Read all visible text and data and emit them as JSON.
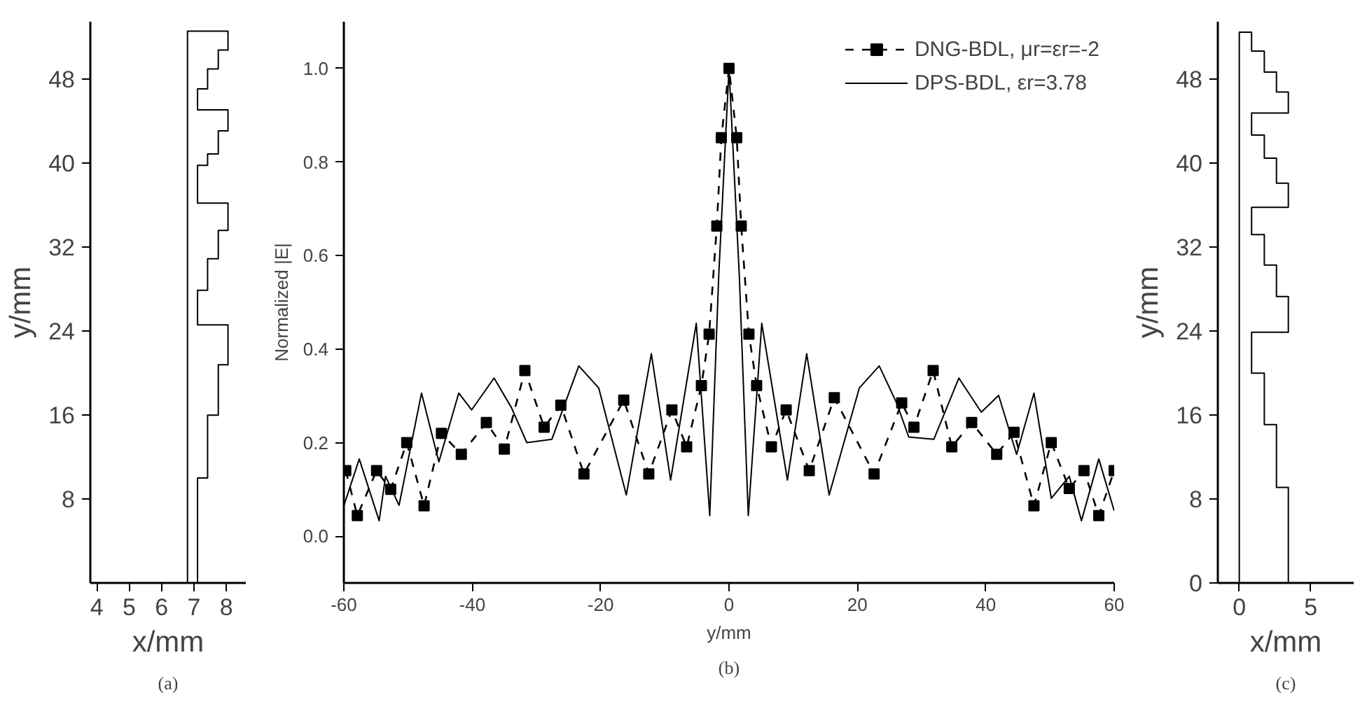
{
  "chart_data": [
    {
      "type": "line",
      "xlabel": "x/mm",
      "ylabel": "y/mm",
      "xlim": [
        3.8,
        8.6
      ],
      "ylim": [
        0,
        53.5
      ],
      "xticks": [
        4,
        5,
        6,
        7,
        8
      ],
      "yticks": [
        8,
        16,
        24,
        32,
        40,
        48
      ],
      "annotations": [
        "(a)"
      ],
      "series": [
        {
          "color": "#000000",
          "x": [
            6.8,
            6.8,
            8.05,
            8.05,
            7.75,
            7.75,
            7.42,
            7.42,
            7.11,
            7.11,
            8.05,
            8.05,
            7.75,
            7.75,
            7.42,
            7.42,
            7.11,
            7.11,
            8.05,
            8.05,
            7.75,
            7.75,
            7.42,
            7.42,
            7.11,
            7.11,
            8.05,
            8.05,
            7.75,
            7.75,
            7.42,
            7.42,
            7.11,
            7.11
          ],
          "values": [
            0,
            52.6,
            52.6,
            50.8,
            50.8,
            49.0,
            49.0,
            47.1,
            47.1,
            45.1,
            45.1,
            43.1,
            43.1,
            40.9,
            40.9,
            39.8,
            39.8,
            36.2,
            36.2,
            33.6,
            33.6,
            30.9,
            30.9,
            27.9,
            27.9,
            24.6,
            24.6,
            20.8,
            20.8,
            16.0,
            16.0,
            10.0,
            10.0,
            0
          ]
        }
      ]
    },
    {
      "type": "line",
      "xlabel": "y/mm",
      "ylabel": "Normalized |E|",
      "xlim": [
        -60,
        60
      ],
      "ylim": [
        -0.1,
        1.1
      ],
      "xticks": [
        -60,
        -40,
        -20,
        0,
        20,
        40,
        60
      ],
      "yticks": [
        {
          "value": 0,
          "label": "0.0"
        },
        {
          "value": 0.2,
          "label": "0.2"
        },
        {
          "value": 0.4,
          "label": "0.4"
        },
        {
          "value": 0.6,
          "label": "0.6"
        },
        {
          "value": 0.8,
          "label": "0.8"
        },
        {
          "value": 1,
          "label": "1.0"
        }
      ],
      "legend": "top right",
      "annotations": [
        "(b)"
      ],
      "series": [
        {
          "name": "DNG-BDL, μr=εr=-2",
          "color": "#000000",
          "marker": "square",
          "line_style": "dashed",
          "x": [
            -59.7,
            -57.9,
            -54.9,
            -52.7,
            -50.2,
            -47.5,
            -44.8,
            -41.7,
            -37.8,
            -35.0,
            -31.8,
            -28.8,
            -26.2,
            -22.6,
            -16.4,
            -12.5,
            -8.9,
            -6.6,
            -4.3,
            -3.1,
            -1.9,
            -1.2,
            0,
            1.2,
            1.9,
            3.1,
            4.3,
            6.6,
            8.9,
            12.5,
            16.4,
            22.6,
            26.9,
            28.8,
            31.8,
            34.7,
            37.8,
            41.7,
            44.4,
            47.5,
            50.2,
            53.0,
            55.3,
            57.6,
            60.0
          ],
          "values": [
            0.14,
            0.044,
            0.14,
            0.1,
            0.2,
            0.065,
            0.22,
            0.175,
            0.243,
            0.186,
            0.354,
            0.233,
            0.28,
            0.133,
            0.291,
            0.133,
            0.27,
            0.191,
            0.322,
            0.432,
            0.663,
            0.852,
            1.0,
            0.852,
            0.663,
            0.432,
            0.322,
            0.191,
            0.27,
            0.14,
            0.296,
            0.133,
            0.285,
            0.233,
            0.354,
            0.191,
            0.243,
            0.175,
            0.222,
            0.065,
            0.2,
            0.102,
            0.14,
            0.044,
            0.14
          ]
        },
        {
          "name": "DPS-BDL, εr=3.78",
          "color": "#000000",
          "line_style": "solid",
          "x": [
            -60.0,
            -57.6,
            -54.5,
            -53.5,
            -51.4,
            -47.9,
            -45.2,
            -42.1,
            -40.1,
            -36.6,
            -33.9,
            -31.5,
            -27.6,
            -23.4,
            -20.3,
            -16.0,
            -12.1,
            -9.1,
            -5.1,
            -3.0,
            -1.6,
            0,
            1.6,
            3.0,
            5.1,
            9.1,
            12.1,
            15.6,
            20.3,
            23.4,
            26.1,
            28.0,
            31.9,
            35.8,
            39.3,
            42.0,
            44.8,
            47.5,
            50.2,
            53.0,
            54.9,
            57.6,
            60.0
          ],
          "values": [
            0.065,
            0.165,
            0.033,
            0.128,
            0.066,
            0.306,
            0.159,
            0.306,
            0.27,
            0.338,
            0.275,
            0.2,
            0.207,
            0.364,
            0.317,
            0.088,
            0.39,
            0.12,
            0.455,
            0.044,
            0.558,
            1.0,
            0.558,
            0.044,
            0.455,
            0.12,
            0.39,
            0.088,
            0.317,
            0.364,
            0.285,
            0.212,
            0.207,
            0.338,
            0.265,
            0.301,
            0.175,
            0.306,
            0.081,
            0.128,
            0.033,
            0.165,
            0.054
          ]
        }
      ]
    },
    {
      "type": "line",
      "xlabel": "x/mm",
      "ylabel": "y/mm",
      "xlim": [
        -1.5,
        8
      ],
      "ylim": [
        0,
        53.5
      ],
      "xticks": [
        0,
        5
      ],
      "yticks": [
        0,
        8,
        16,
        24,
        32,
        40,
        48
      ],
      "annotations": [
        "(c)"
      ],
      "series": [
        {
          "color": "#000000",
          "x": [
            0,
            0,
            0.86,
            0.86,
            1.75,
            1.75,
            2.6,
            2.6,
            3.43,
            3.43,
            0.86,
            0.86,
            1.75,
            1.75,
            2.6,
            2.6,
            3.43,
            3.43,
            0.86,
            0.86,
            1.75,
            1.75,
            2.6,
            2.6,
            3.43,
            3.43,
            0.86,
            0.86,
            1.75,
            1.75,
            2.6,
            2.6,
            3.43,
            3.43
          ],
          "values": [
            0,
            52.5,
            52.5,
            50.7,
            50.7,
            48.7,
            48.7,
            46.8,
            46.8,
            44.8,
            44.8,
            42.7,
            42.7,
            40.5,
            40.5,
            38.1,
            38.1,
            35.8,
            35.8,
            33.2,
            33.2,
            30.3,
            30.3,
            27.3,
            27.3,
            23.9,
            23.9,
            20.0,
            20.0,
            15.1,
            15.1,
            9.1,
            9.1,
            0
          ]
        }
      ]
    }
  ]
}
